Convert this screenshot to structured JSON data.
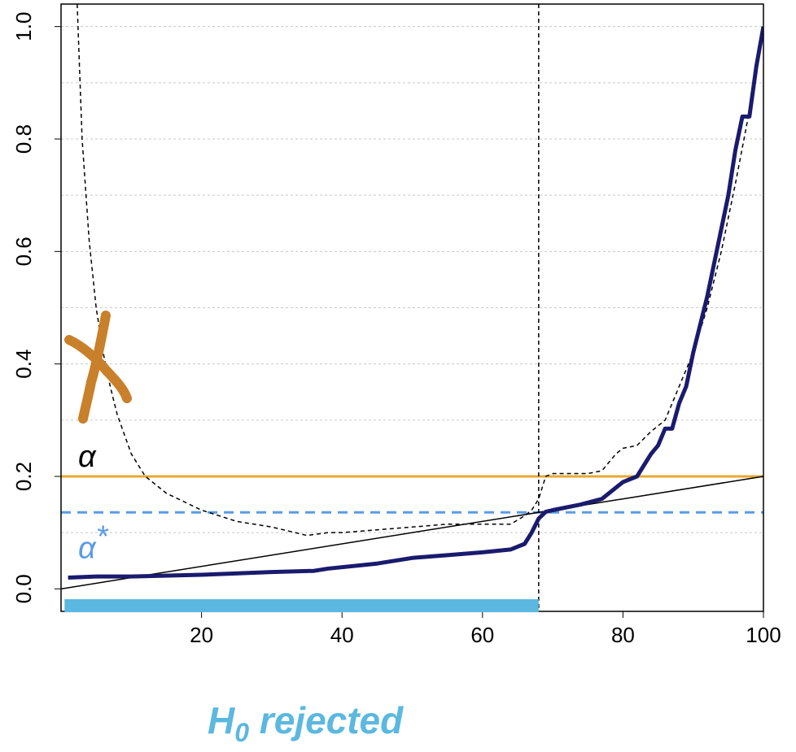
{
  "chart_data": {
    "type": "line",
    "xlim": [
      0,
      100
    ],
    "ylim": [
      -0.04,
      1.04
    ],
    "xticks": [
      20,
      40,
      60,
      80,
      100
    ],
    "yticks": [
      {
        "value": 0,
        "label": "0.0"
      },
      0.2,
      0.4,
      0.6,
      0.8,
      {
        "value": 1,
        "label": "1.0"
      }
    ],
    "grid_y": [
      0.1,
      0.2,
      0.3,
      0.4,
      0.5,
      0.6,
      0.7,
      0.8,
      0.9,
      1.0
    ],
    "series": [
      {
        "x": [
          0,
          100
        ],
        "values": [
          0,
          0.2
        ],
        "color": "#000000",
        "width": 1.5,
        "dash": "none"
      },
      {
        "x": [
          2.3,
          3,
          4,
          5,
          6,
          7,
          8,
          10,
          12,
          15,
          20,
          25,
          30,
          35,
          38,
          40,
          45,
          50,
          55,
          60,
          64,
          66,
          67,
          68,
          69,
          70,
          75,
          77,
          79,
          80,
          82,
          84,
          86,
          88,
          90,
          92,
          94,
          96,
          98
        ],
        "values": [
          1.04,
          0.8,
          0.62,
          0.5,
          0.42,
          0.36,
          0.31,
          0.24,
          0.2,
          0.17,
          0.14,
          0.12,
          0.11,
          0.095,
          0.1,
          0.1,
          0.105,
          0.11,
          0.115,
          0.115,
          0.115,
          0.13,
          0.14,
          0.16,
          0.2,
          0.205,
          0.205,
          0.21,
          0.24,
          0.25,
          0.255,
          0.28,
          0.3,
          0.36,
          0.42,
          0.5,
          0.6,
          0.72,
          0.85
        ],
        "color": "#000000",
        "width": 1.5,
        "dash": "5 4"
      },
      {
        "x": [
          1,
          5,
          10,
          20,
          30,
          36,
          38,
          45,
          50,
          55,
          60,
          64,
          66,
          67,
          68,
          69,
          70,
          74,
          77,
          79,
          80,
          82,
          84,
          85,
          86,
          87,
          88,
          89,
          90,
          92,
          93,
          95,
          96,
          97,
          98,
          99,
          100
        ],
        "values": [
          0.02,
          0.022,
          0.022,
          0.025,
          0.03,
          0.032,
          0.036,
          0.045,
          0.055,
          0.06,
          0.065,
          0.07,
          0.08,
          0.1,
          0.125,
          0.137,
          0.14,
          0.15,
          0.16,
          0.18,
          0.19,
          0.2,
          0.24,
          0.255,
          0.285,
          0.285,
          0.33,
          0.36,
          0.42,
          0.52,
          0.58,
          0.7,
          0.78,
          0.84,
          0.84,
          0.93,
          1.0
        ],
        "color": "#1a1a6e",
        "width": 5,
        "dash": "none"
      }
    ],
    "alpha": {
      "value": 0.2,
      "color": "#e8a830",
      "label": "α"
    },
    "alpha_star": {
      "value": 0.136,
      "color": "#5b9be6",
      "label": "α",
      "sup": "*"
    },
    "cutoff_x": 68,
    "rejected_bar": {
      "x": [
        0.5,
        68
      ],
      "y": -0.03,
      "color": "#5bb8e0"
    },
    "rejected_label": {
      "main": "H",
      "sub": "0",
      "rest": " rejected"
    }
  }
}
